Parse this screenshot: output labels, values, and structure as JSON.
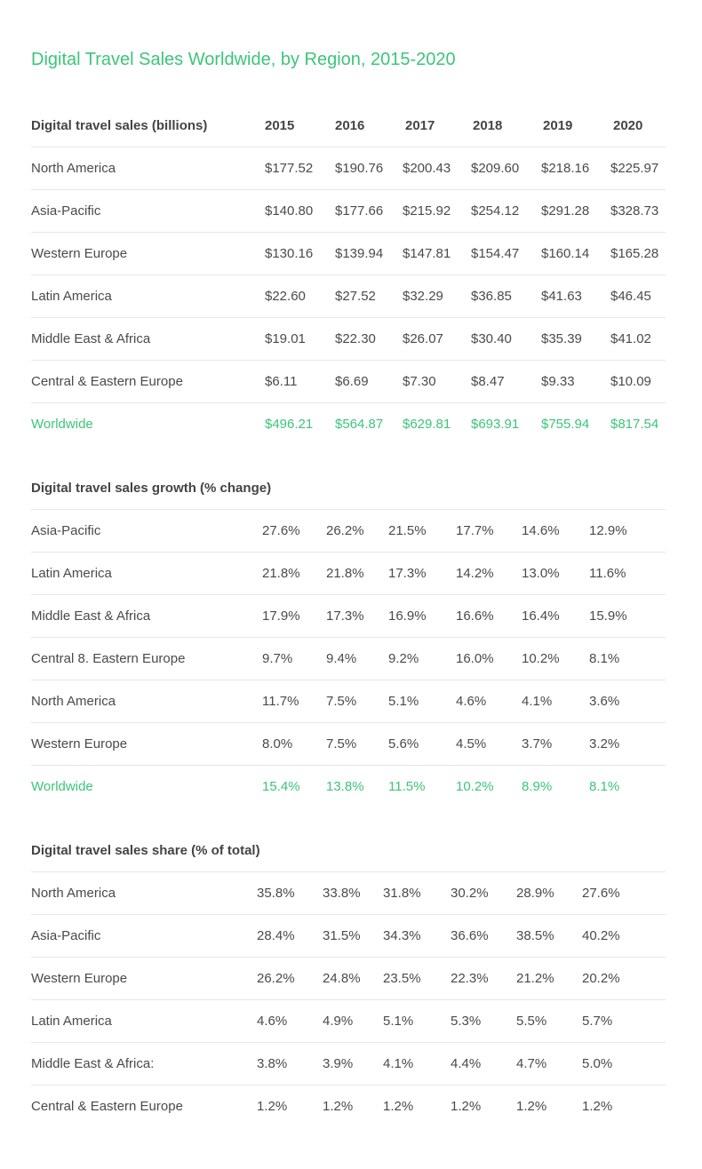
{
  "title": "Digital Travel Sales Worldwide, by Region, 2015-2020",
  "chart_data": [
    {
      "type": "table",
      "title": "Digital travel sales (billions)",
      "columns": [
        "2015",
        "2016",
        "2017",
        "2018",
        "2019",
        "2020"
      ],
      "rows": [
        {
          "label": "North America",
          "values": [
            "$177.52",
            "$190.76",
            "$200.43",
            "$209.60",
            "$218.16",
            "$225.97"
          ]
        },
        {
          "label": "Asia-Pacific",
          "values": [
            "$140.80",
            "$177.66",
            "$215.92",
            "$254.12",
            "$291.28",
            "$328.73"
          ]
        },
        {
          "label": "Western Europe",
          "values": [
            "$130.16",
            "$139.94",
            "$147.81",
            "$154.47",
            "$160.14",
            "$165.28"
          ]
        },
        {
          "label": "Latin America",
          "values": [
            "$22.60",
            "$27.52",
            "$32.29",
            "$36.85",
            "$41.63",
            "$46.45"
          ]
        },
        {
          "label": "Middle East & Africa",
          "values": [
            "$19.01",
            "$22.30",
            "$26.07",
            "$30.40",
            "$35.39",
            "$41.02"
          ]
        },
        {
          "label": "Central & Eastern Europe",
          "values": [
            "$6.11",
            "$6.69",
            "$7.30",
            "$8.47",
            "$9.33",
            "$10.09"
          ]
        },
        {
          "label": "Worldwide",
          "values": [
            "$496.21",
            "$564.87",
            "$629.81",
            "$693.91",
            "$755.94",
            "$817.54"
          ],
          "highlight": true
        }
      ]
    },
    {
      "type": "table",
      "title": "Digital travel sales growth (% change)",
      "rows": [
        {
          "label": "Asia-Pacific",
          "values": [
            "27.6%",
            "26.2%",
            "21.5%",
            "17.7%",
            "14.6%",
            "12.9%"
          ]
        },
        {
          "label": "Latin America",
          "values": [
            "21.8%",
            "21.8%",
            "17.3%",
            "14.2%",
            "13.0%",
            "11.6%"
          ]
        },
        {
          "label": "Middle East & Africa",
          "values": [
            "17.9%",
            "17.3%",
            "16.9%",
            "16.6%",
            "16.4%",
            "15.9%"
          ]
        },
        {
          "label": "Central 8. Eastern Europe",
          "values": [
            "9.7%",
            "9.4%",
            "9.2%",
            "16.0%",
            "10.2%",
            "8.1%"
          ]
        },
        {
          "label": "North America",
          "values": [
            "11.7%",
            "7.5%",
            "5.1%",
            "4.6%",
            "4.1%",
            "3.6%"
          ]
        },
        {
          "label": "Western Europe",
          "values": [
            "8.0%",
            "7.5%",
            "5.6%",
            "4.5%",
            "3.7%",
            "3.2%"
          ]
        },
        {
          "label": "Worldwide",
          "values": [
            "15.4%",
            "13.8%",
            "11.5%",
            "10.2%",
            "8.9%",
            "8.1%"
          ],
          "highlight": true
        }
      ]
    },
    {
      "type": "table",
      "title": "Digital travel sales share (% of total)",
      "rows": [
        {
          "label": "North America",
          "values": [
            "35.8%",
            "33.8%",
            "31.8%",
            "30.2%",
            "28.9%",
            "27.6%"
          ]
        },
        {
          "label": "Asia-Pacific",
          "values": [
            "28.4%",
            "31.5%",
            "34.3%",
            "36.6%",
            "38.5%",
            "40.2%"
          ]
        },
        {
          "label": "Western Europe",
          "values": [
            "26.2%",
            "24.8%",
            "23.5%",
            "22.3%",
            "21.2%",
            "20.2%"
          ]
        },
        {
          "label": "Latin America",
          "values": [
            "4.6%",
            "4.9%",
            "5.1%",
            "5.3%",
            "5.5%",
            "5.7%"
          ]
        },
        {
          "label": "Middle East & Africa:",
          "values": [
            "3.8%",
            "3.9%",
            "4.1%",
            "4.4%",
            "4.7%",
            "5.0%"
          ]
        },
        {
          "label": "Central & Eastern Europe",
          "values": [
            "1.2%",
            "1.2%",
            "1.2%",
            "1.2%",
            "1.2%",
            "1.2%"
          ]
        }
      ]
    }
  ],
  "colors": {
    "accent": "#3cc57a",
    "text": "#4a4a4a",
    "divider": "#e6e6e6"
  }
}
